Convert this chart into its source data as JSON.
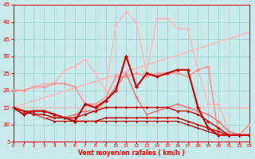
{
  "xlabel": "Vent moyen/en rafales ( km/h )",
  "xlim": [
    0,
    23
  ],
  "ylim": [
    5,
    45
  ],
  "yticks": [
    5,
    10,
    15,
    20,
    25,
    30,
    35,
    40,
    45
  ],
  "xticks": [
    0,
    1,
    2,
    3,
    4,
    5,
    6,
    7,
    8,
    9,
    10,
    11,
    12,
    13,
    14,
    15,
    16,
    17,
    18,
    19,
    20,
    21,
    22,
    23
  ],
  "bg_color": "#c8eaea",
  "grid_color": "#9dcece",
  "lines": [
    {
      "x": [
        0,
        1,
        2,
        3,
        4,
        5,
        6,
        7,
        8,
        9,
        10,
        11,
        12,
        13,
        14,
        15,
        16,
        17,
        18,
        19,
        20,
        21,
        22,
        23
      ],
      "y": [
        15,
        13,
        14,
        14,
        13,
        12,
        11,
        16,
        15,
        17,
        20,
        30,
        21,
        25,
        24,
        25,
        26,
        26,
        15,
        9,
        7,
        7,
        7,
        7
      ],
      "color": "#cc0000",
      "lw": 1.5,
      "marker": "D",
      "ms": 2.5,
      "zorder": 5
    },
    {
      "x": [
        0,
        1,
        2,
        3,
        4,
        5,
        6,
        7,
        8,
        9,
        10,
        11,
        12,
        13,
        14,
        15,
        16,
        17,
        18,
        19,
        20,
        21,
        22,
        23
      ],
      "y": [
        15,
        14,
        14,
        14,
        13,
        12,
        12,
        13,
        14,
        15,
        15,
        15,
        15,
        15,
        15,
        15,
        14,
        14,
        13,
        11,
        9,
        7,
        7,
        7
      ],
      "color": "#cc0000",
      "lw": 1.0,
      "marker": "D",
      "ms": 2.0,
      "zorder": 4
    },
    {
      "x": [
        0,
        1,
        2,
        3,
        4,
        5,
        6,
        7,
        8,
        9,
        10,
        11,
        12,
        13,
        14,
        15,
        16,
        17,
        18,
        19,
        20,
        21,
        22,
        23
      ],
      "y": [
        15,
        14,
        13,
        13,
        12,
        12,
        11,
        11,
        11,
        12,
        12,
        12,
        12,
        12,
        12,
        12,
        12,
        11,
        10,
        9,
        8,
        7,
        7,
        7
      ],
      "color": "#cc0000",
      "lw": 1.0,
      "marker": "D",
      "ms": 1.8,
      "zorder": 4
    },
    {
      "x": [
        0,
        1,
        2,
        3,
        4,
        5,
        6,
        7,
        8,
        9,
        10,
        11,
        12,
        13,
        14,
        15,
        16,
        17,
        18,
        19,
        20,
        21,
        22,
        23
      ],
      "y": [
        15,
        14,
        13,
        12,
        11,
        11,
        11,
        11,
        11,
        11,
        11,
        11,
        11,
        11,
        11,
        11,
        11,
        10,
        9,
        8,
        7,
        7,
        7,
        7
      ],
      "color": "#bb0000",
      "lw": 0.9,
      "marker": "D",
      "ms": 1.5,
      "zorder": 3
    },
    {
      "x": [
        0,
        23
      ],
      "y": [
        15,
        37
      ],
      "color": "#ffbbbb",
      "lw": 1.2,
      "marker": null,
      "ms": 0,
      "zorder": 2
    },
    {
      "x": [
        0,
        23
      ],
      "y": [
        15,
        15
      ],
      "color": "#ffbbbb",
      "lw": 1.0,
      "marker": null,
      "ms": 0,
      "zorder": 2
    },
    {
      "x": [
        0,
        1,
        2,
        3,
        4,
        5,
        6,
        7,
        8,
        9,
        10,
        11,
        12,
        13,
        14,
        15,
        16,
        17,
        18,
        19,
        20,
        21,
        22,
        23
      ],
      "y": [
        20,
        20,
        21,
        21,
        22,
        22,
        21,
        16,
        16,
        18,
        24,
        24,
        25,
        24,
        25,
        25,
        25,
        24,
        26,
        27,
        7,
        7,
        7,
        10
      ],
      "color": "#ff9999",
      "lw": 1.3,
      "marker": "D",
      "ms": 2.5,
      "zorder": 3
    },
    {
      "x": [
        0,
        1,
        2,
        3,
        4,
        5,
        6,
        7,
        8,
        9,
        10,
        11,
        12,
        13,
        14,
        15,
        16,
        17,
        18,
        19,
        20,
        21,
        22,
        23
      ],
      "y": [
        20,
        20,
        21,
        22,
        22,
        26,
        27,
        29,
        25,
        20,
        39,
        43,
        40,
        25,
        41,
        41,
        38,
        38,
        26,
        16,
        16,
        8,
        7,
        10
      ],
      "color": "#ffbbbb",
      "lw": 1.2,
      "marker": "D",
      "ms": 2.5,
      "zorder": 2
    },
    {
      "x": [
        0,
        1,
        2,
        3,
        4,
        5,
        6,
        7,
        8,
        9,
        10,
        11,
        12,
        13,
        14,
        15,
        16,
        17,
        18,
        19,
        20,
        21,
        22,
        23
      ],
      "y": [
        15,
        14,
        13,
        12,
        12,
        12,
        13,
        14,
        14,
        17,
        21,
        25,
        18,
        13,
        14,
        15,
        16,
        15,
        14,
        13,
        11,
        8,
        7,
        7
      ],
      "color": "#ee7777",
      "lw": 1.1,
      "marker": "D",
      "ms": 2.0,
      "zorder": 3
    }
  ]
}
